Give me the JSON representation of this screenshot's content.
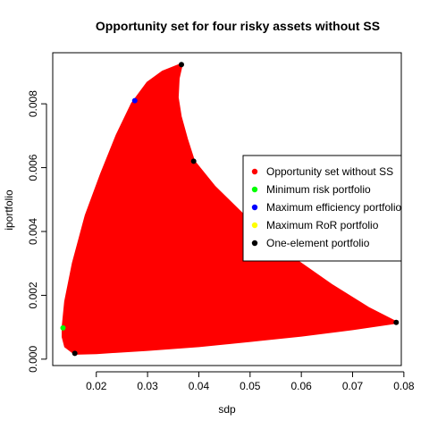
{
  "chart_data": {
    "type": "scatter",
    "title": "Opportunity set for four risky assets without SS",
    "xlabel": "sdp",
    "ylabel": "iportfolio",
    "xlim": [
      0.0115,
      0.0795
    ],
    "ylim": [
      -0.0002,
      0.0096
    ],
    "x_ticks": [
      0.02,
      0.03,
      0.04,
      0.05,
      0.06,
      0.07,
      0.08
    ],
    "x_tick_labels": [
      "0.02",
      "0.03",
      "0.04",
      "0.05",
      "0.06",
      "0.07",
      "0.08"
    ],
    "y_ticks": [
      0.0,
      0.002,
      0.004,
      0.006,
      0.008
    ],
    "y_tick_labels": [
      "0.000",
      "0.002",
      "0.004",
      "0.006",
      "0.008"
    ],
    "grid": false,
    "legend_position": "right",
    "opportunity_set_boundary": [
      [
        0.0158,
        0.00018
      ],
      [
        0.014,
        0.0004
      ],
      [
        0.0135,
        0.0007
      ],
      [
        0.0135,
        0.001
      ],
      [
        0.014,
        0.0018
      ],
      [
        0.0155,
        0.003
      ],
      [
        0.018,
        0.0045
      ],
      [
        0.021,
        0.0058
      ],
      [
        0.024,
        0.007
      ],
      [
        0.027,
        0.008
      ],
      [
        0.03,
        0.00865
      ],
      [
        0.033,
        0.009
      ],
      [
        0.0366,
        0.00923
      ],
      [
        0.036,
        0.0088
      ],
      [
        0.0358,
        0.0082
      ],
      [
        0.0364,
        0.0076
      ],
      [
        0.0376,
        0.0069
      ],
      [
        0.039,
        0.0062
      ],
      [
        0.043,
        0.0054
      ],
      [
        0.05,
        0.0043
      ],
      [
        0.058,
        0.0032
      ],
      [
        0.066,
        0.0023
      ],
      [
        0.073,
        0.0016
      ],
      [
        0.0785,
        0.00115
      ],
      [
        0.07,
        0.00095
      ],
      [
        0.06,
        0.00075
      ],
      [
        0.05,
        0.00058
      ],
      [
        0.04,
        0.00042
      ],
      [
        0.03,
        0.0003
      ],
      [
        0.02,
        0.0002
      ]
    ],
    "series": [
      {
        "name": "Opportunity set without SS",
        "color": "#ff0000",
        "type": "region"
      },
      {
        "name": "Minimum risk portfolio",
        "color": "#00ff00",
        "points": [
          {
            "x": 0.0135,
            "y": 0.00098
          }
        ]
      },
      {
        "name": "Maximum efficiency portfolio",
        "color": "#0000ff",
        "points": [
          {
            "x": 0.0275,
            "y": 0.0081
          }
        ]
      },
      {
        "name": "Maximum RoR portfolio",
        "color": "#ffff00",
        "points": []
      },
      {
        "name": "One-element portfolio",
        "color": "#000000",
        "points": [
          {
            "x": 0.0366,
            "y": 0.00923
          },
          {
            "x": 0.039,
            "y": 0.0062
          },
          {
            "x": 0.0785,
            "y": 0.00115
          },
          {
            "x": 0.0158,
            "y": 0.00018
          }
        ]
      }
    ]
  }
}
